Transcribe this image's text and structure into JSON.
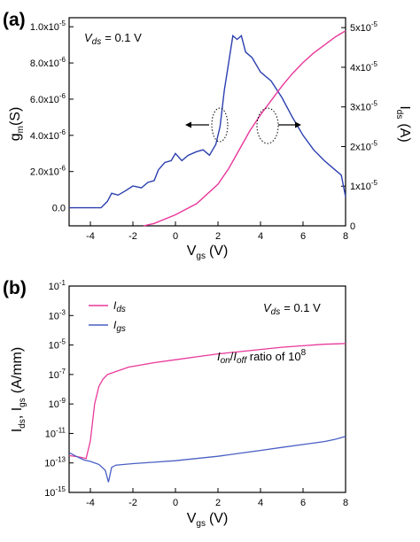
{
  "chart_data": [
    {
      "type": "line",
      "panel_label": "(a)",
      "annotation": {
        "prefix": "V",
        "sub": "ds",
        "value": "= 0.1 V"
      },
      "xlabel": {
        "main": "V",
        "sub": "gs",
        "unit": "(V)"
      },
      "ylabel_left": {
        "main": "g",
        "sub": "m",
        "unit": "(S)"
      },
      "ylabel_right": {
        "main": "I",
        "sub": "ds",
        "unit": "(A)"
      },
      "xlim": [
        -5,
        8
      ],
      "ylim_left": [
        -1e-06,
        1.05e-05
      ],
      "ylim_right": [
        0,
        5.25e-05
      ],
      "x_ticks": [
        -4,
        -2,
        0,
        2,
        4,
        6,
        8
      ],
      "x_tick_labels": [
        "-4",
        "-2",
        "0",
        "2",
        "4",
        "6",
        "8"
      ],
      "y_left_ticks": [
        0,
        2e-06,
        4e-06,
        6e-06,
        8e-06,
        1e-05
      ],
      "y_left_tick_labels": [
        {
          "mant": "0.0",
          "exp": ""
        },
        {
          "mant": "2.0x10",
          "exp": "-6"
        },
        {
          "mant": "4.0x10",
          "exp": "-6"
        },
        {
          "mant": "6.0x10",
          "exp": "-6"
        },
        {
          "mant": "8.0x10",
          "exp": "-6"
        },
        {
          "mant": "1.0x10",
          "exp": "-5"
        }
      ],
      "y_right_ticks": [
        0,
        1e-05,
        2e-05,
        3e-05,
        4e-05,
        5e-05
      ],
      "y_right_tick_labels": [
        {
          "mant": "0",
          "exp": ""
        },
        {
          "mant": "1x10",
          "exp": "-5"
        },
        {
          "mant": "2x10",
          "exp": "-5"
        },
        {
          "mant": "3x10",
          "exp": "-5"
        },
        {
          "mant": "4x10",
          "exp": "-5"
        },
        {
          "mant": "5x10",
          "exp": "-5"
        }
      ],
      "series": [
        {
          "axis": "left",
          "color": "#2b3fb0",
          "x": [
            -5,
            -3.5,
            -3.2,
            -3,
            -2.7,
            -2.4,
            -2,
            -1.6,
            -1.3,
            -1,
            -0.8,
            -0.5,
            -0.2,
            0,
            0.3,
            0.6,
            1,
            1.3,
            1.6,
            1.9,
            2.1,
            2.3,
            2.5,
            2.7,
            2.9,
            3.1,
            3.3,
            3.6,
            4,
            4.5,
            5,
            5.5,
            6,
            6.5,
            7,
            7.5,
            7.8,
            8
          ],
          "y": [
            0,
            0,
            3.5e-07,
            8e-07,
            7e-07,
            9e-07,
            1.2e-06,
            1.1e-06,
            1.4e-06,
            1.5e-06,
            2.1e-06,
            2.5e-06,
            2.6e-06,
            3e-06,
            2.6e-06,
            2.9e-06,
            3.1e-06,
            3.2e-06,
            2.9e-06,
            3.5e-06,
            4.5e-06,
            6.5e-06,
            8e-06,
            9.5e-06,
            9.3e-06,
            9.5e-06,
            8.6e-06,
            8.3e-06,
            7.5e-06,
            7e-06,
            6.1e-06,
            5e-06,
            4e-06,
            3.2e-06,
            2.6e-06,
            2.1e-06,
            1.8e-06,
            6e-07
          ]
        },
        {
          "axis": "right",
          "color": "#e8389a",
          "x": [
            -1.5,
            -1,
            0,
            1,
            2,
            2.5,
            3,
            3.5,
            4,
            4.5,
            5,
            5.5,
            6,
            6.5,
            7,
            7.5,
            8
          ],
          "y": [
            0,
            6e-07,
            2.8e-06,
            5.6e-06,
            1.05e-05,
            1.44e-05,
            1.92e-05,
            2.4e-05,
            2.8e-05,
            3.16e-05,
            3.52e-05,
            3.84e-05,
            4.12e-05,
            4.36e-05,
            4.56e-05,
            4.76e-05,
            4.92e-05
          ]
        }
      ]
    },
    {
      "type": "line",
      "panel_label": "(b)",
      "annotation": {
        "prefix": "V",
        "sub": "ds",
        "value": "= 0.1 V"
      },
      "ratio_text": {
        "a": "I",
        "a_sub": "on",
        "slash": "/",
        "b": "I",
        "b_sub": "off",
        "rest": " ratio of 10",
        "exp": "8"
      },
      "xlabel": {
        "main": "V",
        "sub": "gs",
        "unit": "(V)"
      },
      "ylabel": {
        "a": "I",
        "a_sub": "ds",
        "sep": ", ",
        "b": "I",
        "b_sub": "gs",
        "unit": "(A/mm)"
      },
      "xlim": [
        -5,
        8
      ],
      "ylim_log": [
        -15,
        -1
      ],
      "x_ticks": [
        -4,
        -2,
        0,
        2,
        4,
        6,
        8
      ],
      "x_tick_labels": [
        "-4",
        "-2",
        "0",
        "2",
        "4",
        "6",
        "8"
      ],
      "y_ticks_log": [
        -15,
        -13,
        -11,
        -9,
        -7,
        -5,
        -3,
        -1
      ],
      "y_tick_labels": [
        {
          "mant": "10",
          "exp": "-15"
        },
        {
          "mant": "10",
          "exp": "-13"
        },
        {
          "mant": "10",
          "exp": "-11"
        },
        {
          "mant": "10",
          "exp": "-9"
        },
        {
          "mant": "10",
          "exp": "-7"
        },
        {
          "mant": "10",
          "exp": "-5"
        },
        {
          "mant": "10",
          "exp": "-3"
        },
        {
          "mant": "10",
          "exp": "-1"
        }
      ],
      "legend": [
        {
          "label": "I",
          "sub": "ds",
          "color": "#e8389a"
        },
        {
          "label": "I",
          "sub": "gs",
          "color": "#4a5fc4"
        }
      ],
      "series": [
        {
          "name": "Ids",
          "color": "#e8389a",
          "x": [
            -5,
            -4.5,
            -4.2,
            -4.0,
            -3.8,
            -3.6,
            -3.4,
            -3.2,
            -3.0,
            -2.6,
            -2.2,
            -1.8,
            -1,
            0,
            1,
            2,
            3,
            4,
            5,
            6,
            7,
            8
          ],
          "log_y": [
            -12.5,
            -12.6,
            -12.7,
            -11.5,
            -9.0,
            -7.8,
            -7.3,
            -7.0,
            -6.9,
            -6.7,
            -6.5,
            -6.4,
            -6.2,
            -6.0,
            -5.8,
            -5.6,
            -5.45,
            -5.3,
            -5.15,
            -5.05,
            -4.95,
            -4.9
          ]
        },
        {
          "name": "Igs",
          "color": "#4a5fc4",
          "x": [
            -5,
            -4.6,
            -4.3,
            -4.0,
            -3.6,
            -3.3,
            -3.15,
            -3.0,
            -2.8,
            -2.4,
            -2,
            -1,
            0,
            1,
            2,
            3,
            4,
            5,
            6,
            7,
            7.5,
            8
          ],
          "log_y": [
            -12.3,
            -12.6,
            -12.8,
            -12.9,
            -13.1,
            -13.5,
            -14.3,
            -13.3,
            -13.15,
            -13.1,
            -13.05,
            -12.95,
            -12.85,
            -12.7,
            -12.55,
            -12.35,
            -12.15,
            -11.95,
            -11.75,
            -11.55,
            -11.4,
            -11.2
          ]
        }
      ]
    }
  ]
}
